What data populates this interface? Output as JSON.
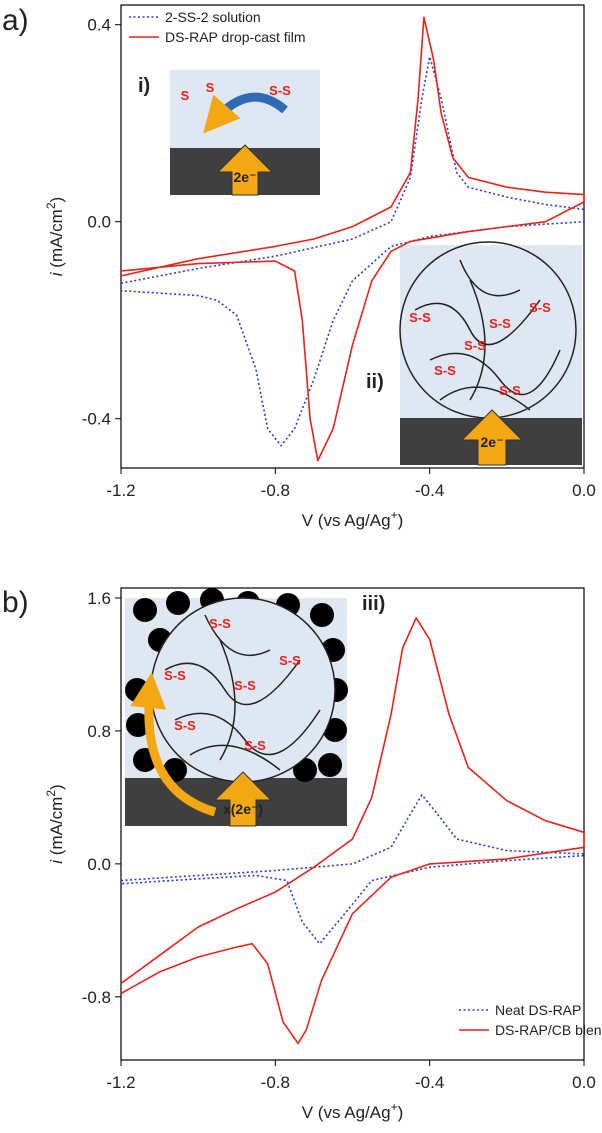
{
  "chart_data": [
    {
      "type": "line",
      "panel_label": "a)",
      "x_label": [
        "V (vs Ag/Ag",
        "+",
        ")"
      ],
      "y_label": [
        "i",
        " (mA/cm",
        "2",
        ")"
      ],
      "xlim": [
        -1.2,
        0.0
      ],
      "ylim": [
        -0.5,
        0.44
      ],
      "xticks": [
        -1.2,
        -0.8,
        -0.4,
        {
          "value": 0,
          "label": "0.0"
        }
      ],
      "yticks": [
        -0.4,
        {
          "value": 0,
          "label": "0.0"
        },
        0.4
      ],
      "legend": "upper left",
      "series": [
        {
          "name": "2-SS-2 solution",
          "color": "#2b3bd6",
          "style": "dotted",
          "x": [
            -1.2,
            -1.0,
            -0.8,
            -0.6,
            -0.5,
            -0.45,
            -0.42,
            -0.4,
            -0.37,
            -0.33,
            -0.3,
            -0.2,
            -0.1,
            0.0,
            0.0,
            -0.2,
            -0.4,
            -0.5,
            -0.6,
            -0.65,
            -0.7,
            -0.75,
            -0.785,
            -0.82,
            -0.85,
            -0.9,
            -0.95,
            -1.0,
            -1.1,
            -1.2
          ],
          "values": [
            -0.125,
            -0.095,
            -0.07,
            -0.035,
            0.0,
            0.09,
            0.25,
            0.335,
            0.25,
            0.1,
            0.07,
            0.05,
            0.035,
            0.025,
            0.0,
            -0.01,
            -0.03,
            -0.05,
            -0.12,
            -0.2,
            -0.32,
            -0.42,
            -0.455,
            -0.42,
            -0.3,
            -0.19,
            -0.16,
            -0.15,
            -0.145,
            -0.14
          ]
        },
        {
          "name": "DS-RAP drop-cast film",
          "color": "#e8231a",
          "style": "solid",
          "x": [
            -1.2,
            -1.0,
            -0.8,
            -0.7,
            -0.6,
            -0.5,
            -0.45,
            -0.43,
            -0.415,
            -0.39,
            -0.37,
            -0.34,
            -0.3,
            -0.2,
            -0.1,
            0.0,
            0.0,
            -0.1,
            -0.3,
            -0.45,
            -0.5,
            -0.55,
            -0.6,
            -0.65,
            -0.69,
            -0.71,
            -0.73,
            -0.75,
            -0.8,
            -1.0,
            -1.2
          ],
          "values": [
            -0.11,
            -0.075,
            -0.05,
            -0.035,
            -0.01,
            0.03,
            0.1,
            0.25,
            0.415,
            0.33,
            0.22,
            0.13,
            0.09,
            0.07,
            0.06,
            0.055,
            0.04,
            0.0,
            -0.02,
            -0.04,
            -0.06,
            -0.12,
            -0.25,
            -0.42,
            -0.485,
            -0.4,
            -0.2,
            -0.1,
            -0.08,
            -0.085,
            -0.1
          ]
        }
      ],
      "annotations": [
        "i)",
        "2e⁻",
        "S-S",
        "S",
        "S",
        "ii)",
        "2e⁻",
        "S-S",
        "S-S",
        "S-S",
        "S-S",
        "S-S",
        "S-S"
      ]
    },
    {
      "type": "line",
      "panel_label": "b)",
      "x_label": [
        "V (vs Ag/Ag",
        "+",
        ")"
      ],
      "y_label": [
        "i",
        " (mA/cm",
        "2",
        ")"
      ],
      "xlim": [
        -1.2,
        0.0
      ],
      "ylim": [
        -1.18,
        1.66
      ],
      "xticks": [
        -1.2,
        -0.8,
        -0.4,
        {
          "value": 0,
          "label": "0.0"
        }
      ],
      "yticks": [
        -0.8,
        {
          "value": 0,
          "label": "0.0"
        },
        0.8,
        1.6
      ],
      "legend": "lower right",
      "series": [
        {
          "name": "Neat DS-RAP",
          "color": "#2b3bd6",
          "style": "dotted",
          "x": [
            -1.2,
            -1.0,
            -0.8,
            -0.6,
            -0.5,
            -0.45,
            -0.42,
            -0.38,
            -0.33,
            -0.2,
            0.0,
            0.0,
            -0.2,
            -0.4,
            -0.55,
            -0.62,
            -0.685,
            -0.73,
            -0.77,
            -0.85,
            -1.0,
            -1.2
          ],
          "values": [
            -0.1,
            -0.07,
            -0.04,
            0.0,
            0.1,
            0.3,
            0.415,
            0.3,
            0.15,
            0.08,
            0.06,
            0.05,
            0.02,
            -0.02,
            -0.1,
            -0.3,
            -0.48,
            -0.35,
            -0.1,
            -0.07,
            -0.09,
            -0.12
          ]
        },
        {
          "name": "DS-RAP/CB blend",
          "color": "#e8231a",
          "style": "solid",
          "x": [
            -1.2,
            -1.1,
            -1.0,
            -0.9,
            -0.8,
            -0.7,
            -0.6,
            -0.55,
            -0.5,
            -0.47,
            -0.435,
            -0.4,
            -0.35,
            -0.3,
            -0.2,
            -0.1,
            0.0,
            0.0,
            -0.2,
            -0.4,
            -0.5,
            -0.6,
            -0.68,
            -0.72,
            -0.741,
            -0.78,
            -0.82,
            -0.86,
            -0.9,
            -1.0,
            -1.1,
            -1.2
          ],
          "values": [
            -0.72,
            -0.55,
            -0.38,
            -0.27,
            -0.17,
            -0.02,
            0.15,
            0.4,
            0.9,
            1.3,
            1.48,
            1.35,
            0.9,
            0.58,
            0.38,
            0.26,
            0.19,
            0.1,
            0.03,
            0.0,
            -0.08,
            -0.3,
            -0.7,
            -1.0,
            -1.08,
            -0.95,
            -0.6,
            -0.48,
            -0.5,
            -0.56,
            -0.65,
            -0.78
          ]
        }
      ],
      "annotations": [
        "iii)",
        "x(2e⁻)",
        "S-S",
        "S-S",
        "S-S",
        "S-S",
        "S-S",
        "S-S"
      ]
    }
  ]
}
